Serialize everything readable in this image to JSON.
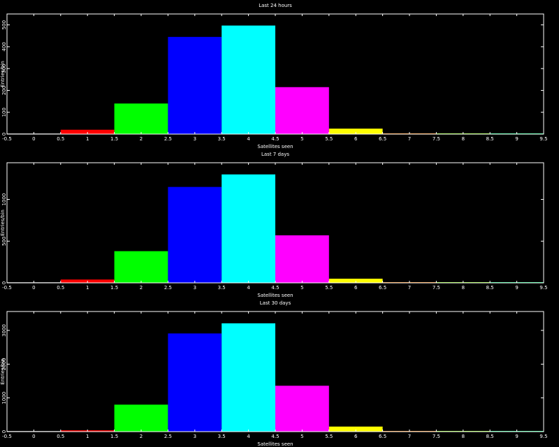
{
  "chart_data": [
    {
      "type": "histogram",
      "title": "Last 24 hours",
      "xlabel": "Satellites seen",
      "ylabel": "Entries/bin",
      "bins": [
        -0.5,
        0.5,
        1.5,
        2.5,
        3.5,
        4.5,
        5.5,
        6.5,
        7.5,
        8.5,
        9.5
      ],
      "values": [
        0,
        20,
        140,
        445,
        497,
        215,
        25,
        0,
        0,
        0
      ],
      "colors": [
        "#808080",
        "#ff0000",
        "#00ff00",
        "#0000ff",
        "#00ffff",
        "#ff00ff",
        "#ffff00",
        "#ff8000",
        "#80ff00",
        "#00ff80"
      ],
      "xlim": [
        -0.5,
        9.5
      ],
      "xticks": [
        -0.5,
        0,
        0.5,
        1,
        1.5,
        2,
        2.5,
        3,
        3.5,
        4,
        4.5,
        5,
        5.5,
        6,
        6.5,
        7,
        7.5,
        8,
        8.5,
        9,
        9.5
      ],
      "ylim": [
        0,
        550
      ],
      "yticks": [
        0,
        100,
        200,
        300,
        400,
        500
      ]
    },
    {
      "type": "histogram",
      "title": "Last 7 days",
      "xlabel": "Satellites seen",
      "ylabel": "Entries/bin",
      "bins": [
        -0.5,
        0.5,
        1.5,
        2.5,
        3.5,
        4.5,
        5.5,
        6.5,
        7.5,
        8.5,
        9.5
      ],
      "values": [
        0,
        40,
        380,
        1150,
        1300,
        570,
        50,
        0,
        0,
        0
      ],
      "colors": [
        "#808080",
        "#ff0000",
        "#00ff00",
        "#0000ff",
        "#00ffff",
        "#ff00ff",
        "#ffff00",
        "#ff8000",
        "#80ff00",
        "#00ff80"
      ],
      "xlim": [
        -0.5,
        9.5
      ],
      "xticks": [
        -0.5,
        0,
        0.5,
        1,
        1.5,
        2,
        2.5,
        3,
        3.5,
        4,
        4.5,
        5,
        5.5,
        6,
        6.5,
        7,
        7.5,
        8,
        8.5,
        9,
        9.5
      ],
      "ylim": [
        0,
        1440
      ],
      "yticks": [
        0,
        500,
        1000
      ]
    },
    {
      "type": "histogram",
      "title": "Last 30 days",
      "xlabel": "Satellites seen",
      "ylabel": "Entries/bin",
      "bins": [
        -0.5,
        0.5,
        1.5,
        2.5,
        3.5,
        4.5,
        5.5,
        6.5,
        7.5,
        8.5,
        9.5
      ],
      "values": [
        0,
        40,
        800,
        2910,
        3210,
        1360,
        150,
        0,
        0,
        0
      ],
      "colors": [
        "#808080",
        "#ff0000",
        "#00ff00",
        "#0000ff",
        "#00ffff",
        "#ff00ff",
        "#ffff00",
        "#ff8000",
        "#80ff00",
        "#00ff80"
      ],
      "xlim": [
        -0.5,
        9.5
      ],
      "xticks": [
        -0.5,
        0,
        0.5,
        1,
        1.5,
        2,
        2.5,
        3,
        3.5,
        4,
        4.5,
        5,
        5.5,
        6,
        6.5,
        7,
        7.5,
        8,
        8.5,
        9,
        9.5
      ],
      "ylim": [
        0,
        3560
      ],
      "yticks": [
        0,
        1000,
        2000,
        3000
      ]
    }
  ]
}
